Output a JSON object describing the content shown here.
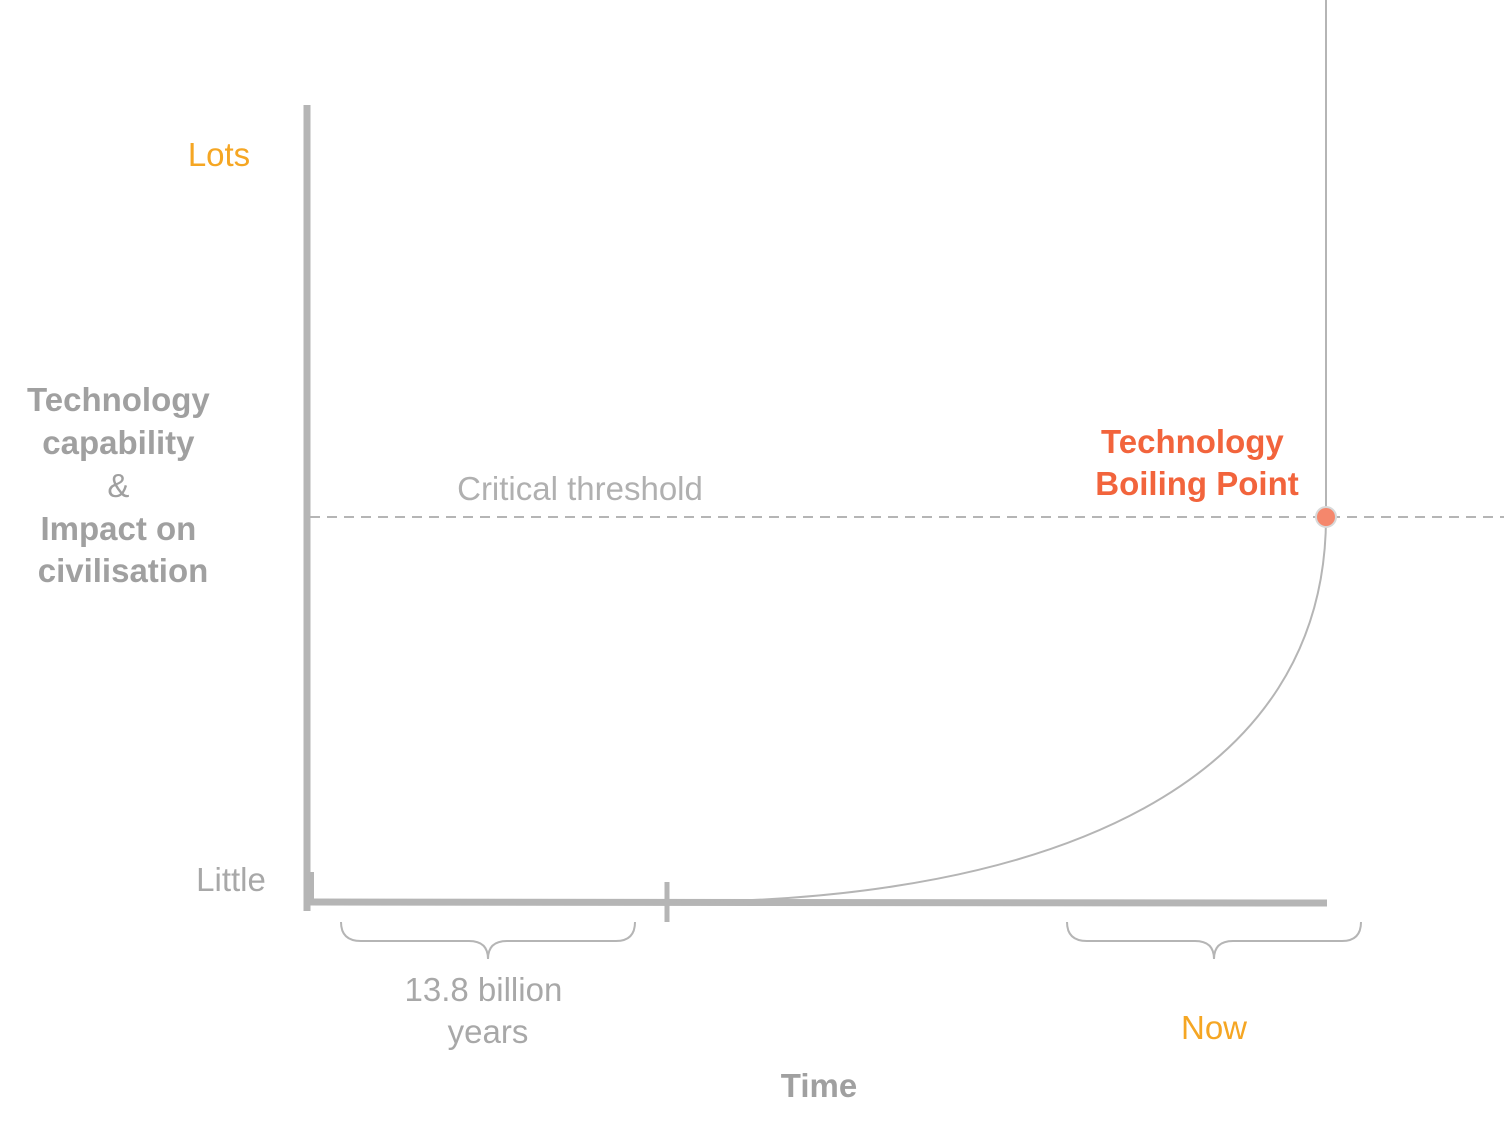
{
  "y_axis": {
    "title_lines": [
      "Technology",
      "capability",
      "&",
      "Impact on",
      "civilisation"
    ],
    "top_label": "Lots",
    "bottom_label": "Little"
  },
  "x_axis": {
    "title": "Time",
    "brace_left_label_lines": [
      "13.8 billion",
      "years"
    ],
    "brace_right_label": "Now"
  },
  "threshold": {
    "label": "Critical threshold"
  },
  "boiling_point": {
    "label_lines": [
      "Technology",
      "Boiling Point"
    ]
  },
  "colors": {
    "axis": "#b5b5b5",
    "text_gray": "#a8a8a8",
    "axis_title_gray": "#a0a0a0",
    "accent_orange": "#f5a623",
    "accent_red": "#f2643c",
    "point_fill": "#f5876c"
  }
}
